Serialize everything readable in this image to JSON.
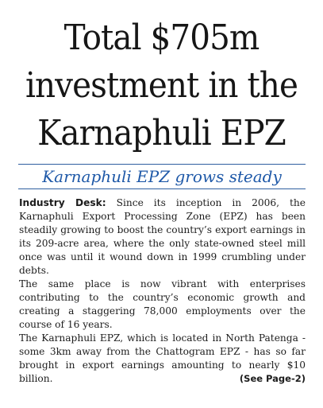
{
  "article": {
    "headline": [
      "Total $705m",
      "investment in the",
      "Karnaphuli EPZ"
    ],
    "subheadline": "Karnaphuli EPZ grows steady",
    "dateline": "Industry Desk:",
    "paragraphs": [
      "Since its inception in 2006, the Karnaphuli Export Processing Zone (EPZ) has been steadily growing to boost the country’s export earnings in its 209-acre area, where the only state-owned steel mill once was until it wound down in 1999 crumbling under debts.",
      "The same place is now vibrant with enterprises contributing to the country’s economic growth and creating a staggering 78,000 employments over the course of 16 years.",
      "The Karnaphuli EPZ, which is located in North Patenga - some 3km away from the Chattogram EPZ - has so far brought in export earnings amounting to nearly $10 billion."
    ],
    "continuation": "(See Page-2)"
  },
  "colors": {
    "accent": "#1f59a8",
    "rule": "#2f5fa0",
    "text": "#1c1c1c"
  }
}
